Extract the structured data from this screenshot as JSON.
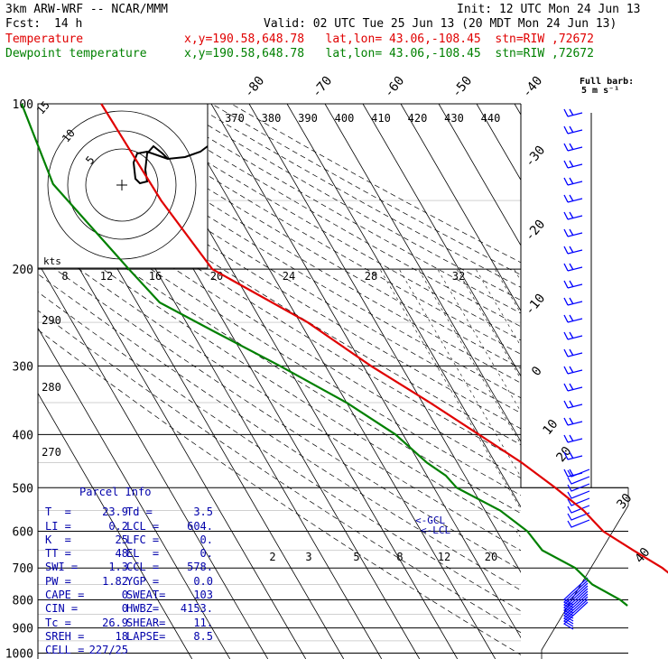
{
  "header": {
    "model": "3km ARW-WRF -- NCAR/MMM",
    "init": "Init: 12 UTC Mon 24 Jun 13",
    "fcst_label": "Fcst:",
    "fcst_value": "14 h",
    "valid": "Valid: 02 UTC Tue 25 Jun 13 (20 MDT Mon 24 Jun 13)",
    "temp_label": "Temperature",
    "temp_info": "x,y=190.58,648.78   lat,lon= 43.06,-108.45  stn=RIW ,72672",
    "dew_label": "Dewpoint temperature",
    "dew_info": "x,y=190.58,648.78   lat,lon= 43.06,-108.45  stn=RIW ,72672"
  },
  "colors": {
    "temperature": "#e00000",
    "dewpoint": "#008000",
    "barbs": "#0000ff",
    "text": "#000000"
  },
  "barb_legend": {
    "title": "Full barb:",
    "value": "5 m s⁻¹"
  },
  "hodograph": {
    "units_label": "kts",
    "ring_labels": [
      "5",
      "10",
      "15"
    ],
    "trace": [
      [
        0,
        14
      ],
      [
        -4,
        14
      ],
      [
        -4,
        10
      ],
      [
        -5,
        8
      ],
      [
        -3,
        3
      ],
      [
        -3,
        0
      ],
      [
        1,
        -2
      ],
      [
        2,
        2
      ],
      [
        3,
        5
      ],
      [
        10,
        4
      ],
      [
        14,
        6
      ]
    ]
  },
  "parcel": {
    "title": "Parcel Info",
    "rows": [
      {
        "l1": "T  =",
        "v1": "23.9",
        "l2": "Td =",
        "v2": "3.5"
      },
      {
        "l1": "LI =",
        "v1": "0.2",
        "l2": "LCL =",
        "v2": "604."
      },
      {
        "l1": "K  =",
        "v1": "25",
        "l2": "LFC =",
        "v2": "0."
      },
      {
        "l1": "TT =",
        "v1": "48",
        "l2": "EL  =",
        "v2": "0."
      },
      {
        "l1": "SWI =",
        "v1": "1.3",
        "l2": "CCL =",
        "v2": "578."
      },
      {
        "l1": "PW =",
        "v1": "1.82",
        "l2": "YGP =",
        "v2": "0.0"
      },
      {
        "l1": "CAPE =",
        "v1": "0",
        "l2": "SWEAT=",
        "v2": "103"
      },
      {
        "l1": "CIN =",
        "v1": "0",
        "l2": "HWBZ=",
        "v2": "4153."
      },
      {
        "l1": "Tc =",
        "v1": "26.9",
        "l2": "SHEAR=",
        "v2": "11."
      },
      {
        "l1": "SREH =",
        "v1": "18",
        "l2": "LAPSE=",
        "v2": "8.5"
      },
      {
        "l1": "CELL =",
        "v1": "227/25",
        "l2": "",
        "v2": ""
      }
    ]
  },
  "chart_data": {
    "type": "line",
    "title": "",
    "xlabel": "",
    "ylabel": "",
    "pressure_ticks": [
      "100",
      "200",
      "300",
      "400",
      "500",
      "600",
      "700",
      "800",
      "900",
      "1000"
    ],
    "isotherm_labels": [
      "-80",
      "-70",
      "-60",
      "-50",
      "-40",
      "-30",
      "-20",
      "-10",
      "0",
      "10",
      "20",
      "30",
      "40"
    ],
    "theta_labels": [
      "370",
      "380",
      "390",
      "400",
      "410",
      "420",
      "430",
      "440"
    ],
    "dry_adiabat_labels": [
      "290",
      "280",
      "270"
    ],
    "mixing_ratio_labels": [
      "2",
      "3",
      "5",
      "8",
      "12",
      "20"
    ],
    "wind_speed_labels": [
      "8",
      "12",
      "16",
      "20",
      "24",
      "28",
      "32"
    ],
    "lcl_labels": [
      "<-GCL",
      "<-LCL"
    ],
    "series": [
      {
        "name": "Temperature",
        "points": [
          [
            100,
            -59
          ],
          [
            150,
            -58
          ],
          [
            200,
            -55
          ],
          [
            250,
            -38
          ],
          [
            300,
            -28
          ],
          [
            350,
            -18
          ],
          [
            400,
            -10
          ],
          [
            450,
            -3
          ],
          [
            500,
            2
          ],
          [
            550,
            6
          ],
          [
            600,
            8
          ],
          [
            650,
            13
          ],
          [
            700,
            18
          ],
          [
            750,
            21
          ],
          [
            800,
            22
          ],
          [
            820,
            24
          ]
        ]
      },
      {
        "name": "Dewpoint temperature",
        "points": [
          [
            100,
            -80
          ],
          [
            140,
            -84
          ],
          [
            200,
            -77
          ],
          [
            230,
            -74
          ],
          [
            260,
            -64
          ],
          [
            300,
            -52
          ],
          [
            350,
            -40
          ],
          [
            400,
            -32
          ],
          [
            450,
            -28
          ],
          [
            475,
            -25
          ],
          [
            500,
            -24
          ],
          [
            550,
            -16
          ],
          [
            600,
            -12
          ],
          [
            650,
            -11
          ],
          [
            700,
            -5
          ],
          [
            750,
            -3
          ],
          [
            800,
            2
          ],
          [
            820,
            3
          ]
        ]
      }
    ]
  }
}
